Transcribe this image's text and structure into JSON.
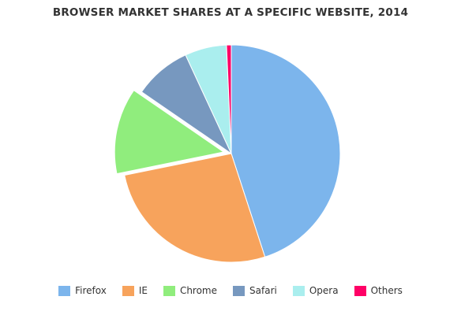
{
  "chart_data": {
    "type": "pie",
    "title": "BROWSER MARKET SHARES AT A SPECIFIC WEBSITE, 2014",
    "categories": [
      "Firefox",
      "IE",
      "Chrome",
      "Safari",
      "Opera",
      "Others"
    ],
    "values": [
      45.0,
      26.8,
      12.8,
      8.5,
      6.2,
      0.7
    ],
    "exploded": [
      "Chrome"
    ],
    "colors": [
      "#7cb5ec",
      "#f7a35c",
      "#90ed7d",
      "#7798bf",
      "#aaeeee",
      "#ff0066"
    ],
    "legend_position": "bottom"
  }
}
